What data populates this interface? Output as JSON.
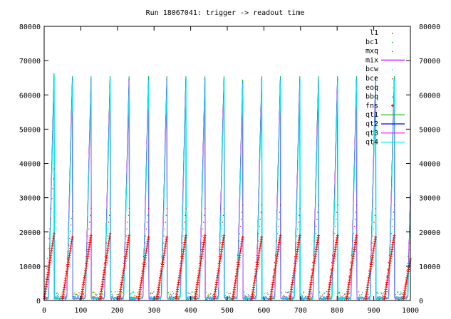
{
  "chart_data": {
    "type": "line",
    "title": "Run 18067041: trigger -> readout time",
    "xlabel": "",
    "ylabel": "",
    "xlim": [
      0,
      1000
    ],
    "ylim": [
      0,
      80000
    ],
    "x_ticks": [
      0,
      100,
      200,
      300,
      400,
      500,
      600,
      700,
      800,
      900,
      1000
    ],
    "y_ticks": [
      0,
      10000,
      20000,
      30000,
      40000,
      50000,
      60000,
      70000,
      80000
    ],
    "y_tick_labels": [
      "0",
      "10000",
      "20000",
      "30000",
      "40000",
      "50000",
      "60000",
      "70000",
      "80000"
    ],
    "grid": false,
    "legend_position": "top-right",
    "cycle": {
      "starts": [
        0,
        50,
        101,
        153,
        205,
        258,
        308,
        360,
        412,
        464,
        515,
        567,
        618,
        671,
        722,
        774,
        826,
        878,
        929,
        981
      ],
      "peak_qt": [
        70000,
        69000,
        69000,
        69000,
        69000,
        69000,
        69000,
        69000,
        69000,
        69000,
        68000,
        69000,
        69000,
        69000,
        69000,
        69000,
        69000,
        69000,
        69000,
        69000
      ],
      "peak_fns": [
        19500,
        18500,
        19000,
        19500,
        19000,
        18500,
        18500,
        19000,
        19000,
        19000,
        18500,
        18500,
        19000,
        19000,
        19000,
        19000,
        19000,
        18500,
        19000,
        17000
      ],
      "peak_l1": [
        40000,
        27000,
        28000,
        28000,
        28000,
        28000,
        28000,
        28000,
        28000,
        28000,
        29000,
        29000,
        29000,
        28000,
        29000,
        29000,
        29000,
        28000,
        29000,
        28000
      ]
    },
    "series": [
      {
        "name": "l1",
        "color": "#ff0000",
        "style": "dots"
      },
      {
        "name": "bc1",
        "color": "#00c000",
        "style": "dots"
      },
      {
        "name": "mxq",
        "color": "#0080ff",
        "style": "dots"
      },
      {
        "name": "mix",
        "color": "#c000ff",
        "style": "line"
      },
      {
        "name": "bcw",
        "color": "#00eeee",
        "style": "dots"
      },
      {
        "name": "bce",
        "color": "#c04000",
        "style": "dots"
      },
      {
        "name": "eoq",
        "color": "#c8c800",
        "style": "dots"
      },
      {
        "name": "bbq",
        "color": "#4169e1",
        "style": "dots"
      },
      {
        "name": "fns",
        "color": "#ff0000",
        "style": "plus"
      },
      {
        "name": "qt1",
        "color": "#00c000",
        "style": "line"
      },
      {
        "name": "qt2",
        "color": "#0000ff",
        "style": "line"
      },
      {
        "name": "qt3",
        "color": "#ff00ff",
        "style": "line"
      },
      {
        "name": "qt4",
        "color": "#00eeee",
        "style": "line"
      }
    ]
  }
}
